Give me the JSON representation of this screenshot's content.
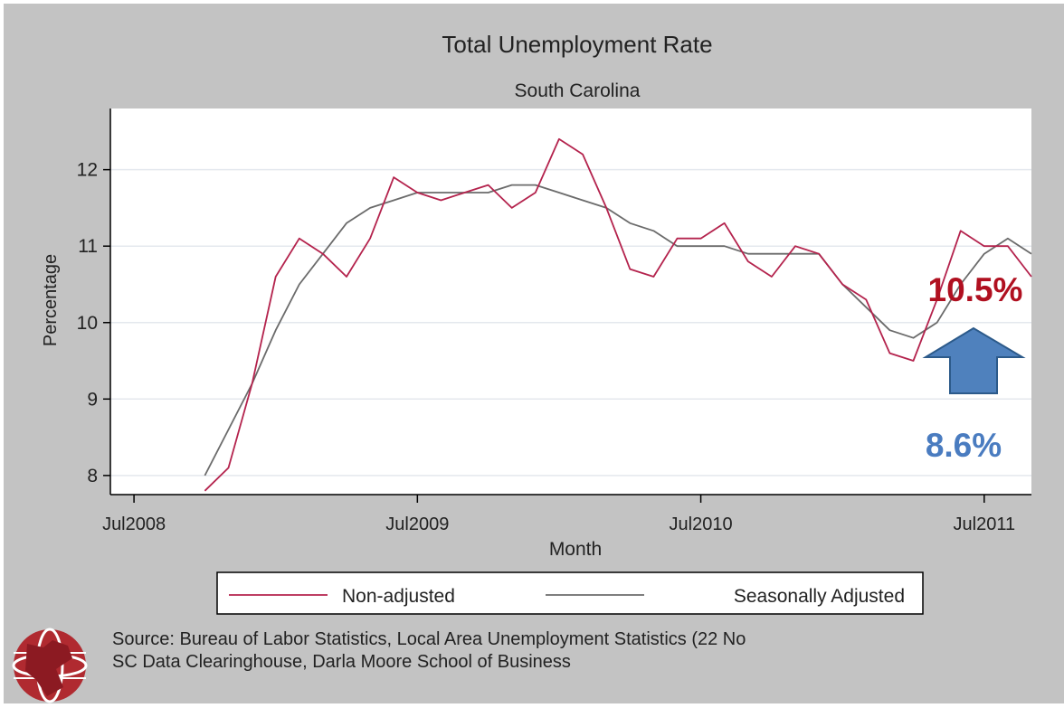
{
  "colors": {
    "frame": "#c3c3c3",
    "plot_bg": "#ffffff",
    "gridline": "#e4e8ee",
    "non_adjusted": "#b4234d",
    "seasonally_adjusted": "#6b6b6b",
    "annotation_red": "#b01020",
    "annotation_blue": "#4a7cc0",
    "arrow_fill": "#4f81bd",
    "arrow_stroke": "#2c5a8a"
  },
  "chart_data": {
    "type": "line",
    "title": "Total Unemployment Rate",
    "subtitle": "South Carolina",
    "xlabel": "Month",
    "ylabel": "Percentage",
    "x_range": [
      "2008-06",
      "2011-09"
    ],
    "ylim": [
      7.75,
      12.8
    ],
    "x_ticks": [
      {
        "date": "2008-07",
        "label": "Jul2008"
      },
      {
        "date": "2009-07",
        "label": "Jul2009"
      },
      {
        "date": "2010-07",
        "label": "Jul2010"
      },
      {
        "date": "2011-07",
        "label": "Jul2011"
      }
    ],
    "y_ticks": [
      8,
      9,
      10,
      11,
      12
    ],
    "grid": true,
    "legend_position": "bottom",
    "x": [
      "2008-10",
      "2008-11",
      "2008-12",
      "2009-01",
      "2009-02",
      "2009-03",
      "2009-04",
      "2009-05",
      "2009-06",
      "2009-07",
      "2009-08",
      "2009-09",
      "2009-10",
      "2009-11",
      "2009-12",
      "2010-01",
      "2010-02",
      "2010-03",
      "2010-04",
      "2010-05",
      "2010-06",
      "2010-07",
      "2010-08",
      "2010-09",
      "2010-10",
      "2010-11",
      "2010-12",
      "2011-01",
      "2011-02",
      "2011-03",
      "2011-04",
      "2011-05",
      "2011-06",
      "2011-07",
      "2011-08",
      "2011-09"
    ],
    "series": [
      {
        "name": "Non-adjusted",
        "values": [
          7.8,
          8.1,
          9.2,
          10.6,
          11.1,
          10.9,
          10.6,
          11.1,
          11.9,
          11.7,
          11.6,
          11.7,
          11.8,
          11.5,
          11.7,
          12.4,
          12.2,
          11.5,
          10.7,
          10.6,
          11.1,
          11.1,
          11.3,
          10.8,
          10.6,
          11.0,
          10.9,
          10.5,
          10.3,
          9.6,
          9.5,
          10.3,
          11.2,
          11.0,
          11.0,
          10.6
        ]
      },
      {
        "name": "Seasonally Adjusted",
        "values": [
          8.0,
          8.6,
          9.2,
          9.9,
          10.5,
          10.9,
          11.3,
          11.5,
          11.6,
          11.7,
          11.7,
          11.7,
          11.7,
          11.8,
          11.8,
          11.7,
          11.6,
          11.5,
          11.3,
          11.2,
          11.0,
          11.0,
          11.0,
          10.9,
          10.9,
          10.9,
          10.9,
          10.5,
          10.2,
          9.9,
          9.8,
          10.0,
          10.5,
          10.9,
          11.1,
          10.9
        ]
      }
    ],
    "annotations": [
      {
        "text": "10.5%",
        "color": "annotation_red"
      },
      {
        "text": "8.6%",
        "color": "annotation_blue"
      }
    ],
    "source_lines": [
      "Source: Bureau of Labor Statistics, Local Area Unemployment Statistics (22 No",
      "SC Data Clearinghouse, Darla Moore School of Business"
    ]
  },
  "icons": {
    "logo": "globe-logo-icon",
    "arrow": "up-arrow-icon"
  }
}
